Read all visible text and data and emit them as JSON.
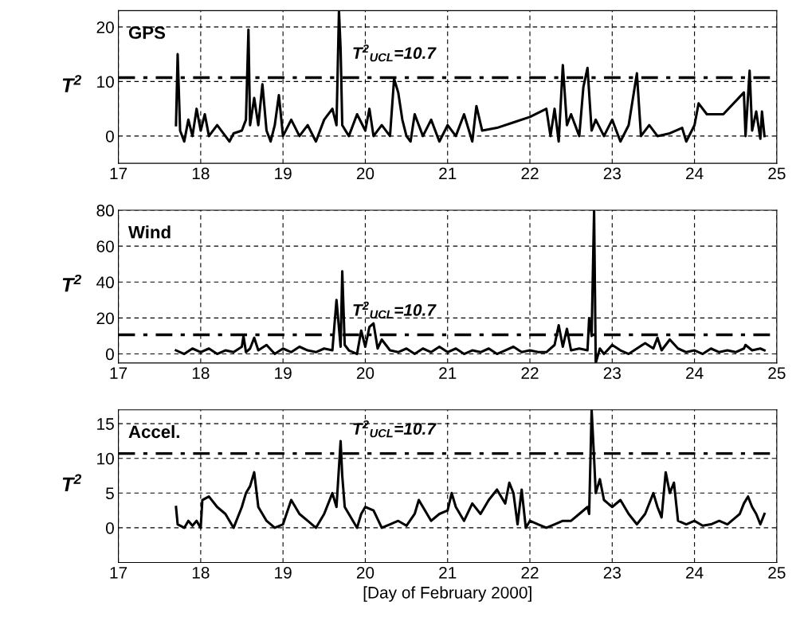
{
  "chart_data": [
    {
      "type": "line",
      "xlim": [
        17,
        25
      ],
      "xticks": [
        17,
        18,
        19,
        20,
        21,
        22,
        23,
        24,
        25
      ],
      "ylim": [
        -5,
        23
      ],
      "yticks": [
        0,
        10,
        20
      ],
      "ylabel": "T$^{2}$",
      "grid": true,
      "legend": false,
      "annotations": [
        "GPS"
      ],
      "ref_lines": [
        {
          "axis": "y",
          "value": 10.7,
          "label": "T$^{2}$$_{UCL}$=10.7",
          "line_style": "dashdot",
          "color": "#000000"
        }
      ],
      "series": [
        {
          "color": "#000000",
          "x": [
            17.7,
            17.72,
            17.75,
            17.8,
            17.85,
            17.9,
            17.95,
            18.0,
            18.05,
            18.1,
            18.2,
            18.3,
            18.35,
            18.4,
            18.5,
            18.55,
            18.58,
            18.6,
            18.65,
            18.7,
            18.75,
            18.8,
            18.85,
            18.9,
            18.95,
            19.0,
            19.1,
            19.2,
            19.3,
            19.4,
            19.5,
            19.6,
            19.65,
            19.68,
            19.7,
            19.72,
            19.8,
            19.9,
            20.0,
            20.05,
            20.1,
            20.2,
            20.3,
            20.35,
            20.4,
            20.45,
            20.5,
            20.55,
            20.6,
            20.7,
            20.8,
            20.9,
            21.0,
            21.1,
            21.2,
            21.3,
            21.35,
            21.42,
            21.6,
            21.8,
            22.0,
            22.2,
            22.25,
            22.3,
            22.35,
            22.4,
            22.45,
            22.5,
            22.6,
            22.65,
            22.7,
            22.75,
            22.8,
            22.9,
            23.0,
            23.1,
            23.2,
            23.3,
            23.35,
            23.45,
            23.55,
            23.7,
            23.85,
            23.9,
            24.0,
            24.05,
            24.15,
            24.35,
            24.6,
            24.62,
            24.67,
            24.7,
            24.75,
            24.8,
            24.82,
            24.85
          ],
          "values": [
            2,
            15,
            1,
            -1,
            3,
            0,
            5,
            1,
            4,
            0,
            2,
            0,
            -1,
            0.5,
            1,
            3,
            19.5,
            2,
            7,
            2,
            9.5,
            1,
            -1,
            2,
            7.5,
            0,
            3,
            0,
            2,
            -1,
            3,
            5,
            2,
            23,
            16,
            2,
            0,
            4,
            1,
            5,
            0,
            2,
            0,
            10.5,
            8,
            3,
            0,
            -1,
            4,
            0,
            3,
            -1,
            2,
            0,
            4,
            -1,
            5.5,
            1,
            1.5,
            2.5,
            3.5,
            5,
            0,
            5,
            -1,
            13,
            2,
            4,
            0,
            9,
            12.5,
            1,
            3,
            0,
            3,
            -1,
            2,
            11.5,
            0,
            2,
            0,
            0.5,
            1.5,
            -1,
            2,
            6,
            4,
            4,
            8,
            0,
            12,
            1,
            4.5,
            -0.5,
            4.5,
            0
          ]
        }
      ]
    },
    {
      "type": "line",
      "xlim": [
        17,
        25
      ],
      "xticks": [
        17,
        18,
        19,
        20,
        21,
        22,
        23,
        24,
        25
      ],
      "ylim": [
        -5,
        80
      ],
      "yticks": [
        0,
        20,
        40,
        60,
        80
      ],
      "ylabel": "T$^{2}$",
      "grid": true,
      "legend": false,
      "annotations": [
        "Wind"
      ],
      "ref_lines": [
        {
          "axis": "y",
          "value": 10.7,
          "label": "T$^{2}$$_{UCL}$=10.7",
          "line_style": "dashdot",
          "color": "#000000"
        }
      ],
      "series": [
        {
          "color": "#000000",
          "x": [
            17.7,
            17.8,
            17.9,
            18.0,
            18.1,
            18.2,
            18.3,
            18.4,
            18.5,
            18.52,
            18.55,
            18.6,
            18.65,
            18.7,
            18.8,
            18.9,
            19.0,
            19.1,
            19.2,
            19.3,
            19.4,
            19.5,
            19.6,
            19.65,
            19.7,
            19.72,
            19.75,
            19.8,
            19.9,
            19.95,
            20.0,
            20.05,
            20.1,
            20.15,
            20.2,
            20.3,
            20.4,
            20.5,
            20.6,
            20.7,
            20.8,
            20.9,
            21.0,
            21.1,
            21.2,
            21.3,
            21.4,
            21.5,
            21.6,
            21.7,
            21.8,
            21.9,
            22.0,
            22.1,
            22.2,
            22.3,
            22.35,
            22.4,
            22.45,
            22.5,
            22.6,
            22.7,
            22.72,
            22.75,
            22.78,
            22.8,
            22.85,
            22.9,
            23.0,
            23.1,
            23.2,
            23.3,
            23.4,
            23.5,
            23.55,
            23.6,
            23.7,
            23.8,
            23.9,
            24.0,
            24.1,
            24.2,
            24.3,
            24.4,
            24.5,
            24.6,
            24.62,
            24.7,
            24.8,
            24.85
          ],
          "values": [
            2,
            0,
            3,
            1,
            3,
            0,
            2,
            1,
            4,
            10,
            1,
            3,
            9,
            2,
            5,
            0,
            3,
            1,
            4,
            2,
            1,
            3,
            2,
            30,
            4,
            46,
            5,
            2,
            0,
            13,
            4,
            15,
            17,
            3,
            8,
            2,
            1,
            3,
            0,
            3,
            1,
            4,
            1,
            3,
            0,
            2,
            1,
            3,
            0,
            2,
            4,
            1,
            2,
            1,
            1,
            5,
            16,
            4,
            14,
            2,
            3,
            2,
            20,
            10,
            80,
            -5,
            3,
            0,
            5,
            2,
            0,
            3,
            6,
            3,
            9,
            2,
            8,
            3,
            1,
            2,
            0,
            3,
            1,
            2,
            1,
            3,
            5,
            2,
            3,
            2
          ]
        }
      ]
    },
    {
      "type": "line",
      "xlim": [
        17,
        25
      ],
      "xticks": [
        17,
        18,
        19,
        20,
        21,
        22,
        23,
        24,
        25
      ],
      "ylim": [
        -5,
        17
      ],
      "yticks": [
        0,
        5,
        10,
        15
      ],
      "ylabel": "T$^{2}$",
      "xlabel": "[Day of February 2000]",
      "grid": true,
      "legend": false,
      "annotations": [
        "Accel."
      ],
      "ref_lines": [
        {
          "axis": "y",
          "value": 10.7,
          "label": "T$^{2}$$_{UCL}$=10.7",
          "line_style": "dashdot",
          "color": "#000000"
        }
      ],
      "series": [
        {
          "color": "#000000",
          "x": [
            17.7,
            17.72,
            17.8,
            17.85,
            17.9,
            17.95,
            18.0,
            18.02,
            18.1,
            18.2,
            18.3,
            18.4,
            18.5,
            18.55,
            18.6,
            18.65,
            18.7,
            18.8,
            18.9,
            19.0,
            19.1,
            19.2,
            19.3,
            19.4,
            19.5,
            19.6,
            19.65,
            19.7,
            19.72,
            19.75,
            19.8,
            19.9,
            19.95,
            20.0,
            20.1,
            20.2,
            20.3,
            20.4,
            20.5,
            20.6,
            20.65,
            20.7,
            20.8,
            20.9,
            21.0,
            21.05,
            21.1,
            21.2,
            21.3,
            21.4,
            21.5,
            21.6,
            21.7,
            21.75,
            21.8,
            21.85,
            21.9,
            21.95,
            22.0,
            22.1,
            22.2,
            22.3,
            22.4,
            22.5,
            22.6,
            22.7,
            22.72,
            22.75,
            22.78,
            22.8,
            22.85,
            22.9,
            23.0,
            23.1,
            23.2,
            23.3,
            23.4,
            23.5,
            23.55,
            23.6,
            23.65,
            23.7,
            23.75,
            23.8,
            23.9,
            24.0,
            24.1,
            24.2,
            24.3,
            24.4,
            24.5,
            24.55,
            24.6,
            24.65,
            24.7,
            24.75,
            24.8,
            24.85
          ],
          "values": [
            3,
            0.5,
            0,
            1,
            0.3,
            1,
            0,
            4,
            4.5,
            3,
            2,
            0,
            3,
            5,
            6,
            8,
            3,
            1,
            0,
            0.5,
            4,
            2,
            1,
            0,
            2,
            5,
            3,
            12.5,
            7.5,
            3,
            2,
            0,
            2,
            3,
            2.5,
            0,
            0.5,
            1,
            0.3,
            2,
            4,
            3,
            1,
            2,
            2.5,
            5,
            3,
            1,
            3.5,
            2,
            4,
            5.5,
            3.5,
            6.5,
            5,
            0.5,
            5.5,
            0,
            1,
            0.5,
            0,
            0.5,
            1,
            1,
            2,
            3,
            2,
            17,
            10,
            5,
            7,
            4,
            3,
            4,
            2,
            0.5,
            2,
            5,
            3,
            1.5,
            8,
            5,
            6.5,
            1,
            0.5,
            1,
            0.3,
            0.5,
            1,
            0.5,
            1.5,
            2,
            3.5,
            4.5,
            3,
            2,
            0.5,
            2
          ]
        }
      ]
    }
  ]
}
